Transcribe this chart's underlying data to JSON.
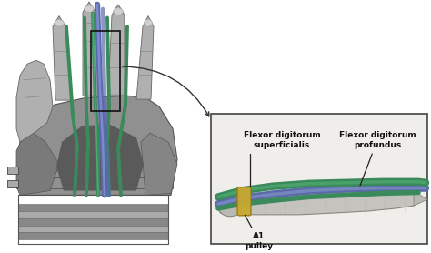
{
  "bg_color": "#ffffff",
  "inset_bg": "#f5f3ef",
  "inset_border": "#555555",
  "arrow_color": "#333333",
  "tendon_green_color": "#3a8a5c",
  "tendon_blue_color": "#5a6aaa",
  "pulley_yellow_color": "#c8a830",
  "pulley_outline": "#9a7a10",
  "bone_color": "#c0beba",
  "bone_outline": "#888880",
  "label_fds": "Flexor digitorum\nsuperficialis",
  "label_fdp": "Flexor digitorum\nprofundus",
  "label_a1": "A1\npulley",
  "label_fontsize": 6.5,
  "hand_gray": "#a0a0a0",
  "hand_dark": "#606060",
  "hand_light": "#d0d0d0",
  "hand_very_dark": "#404040"
}
